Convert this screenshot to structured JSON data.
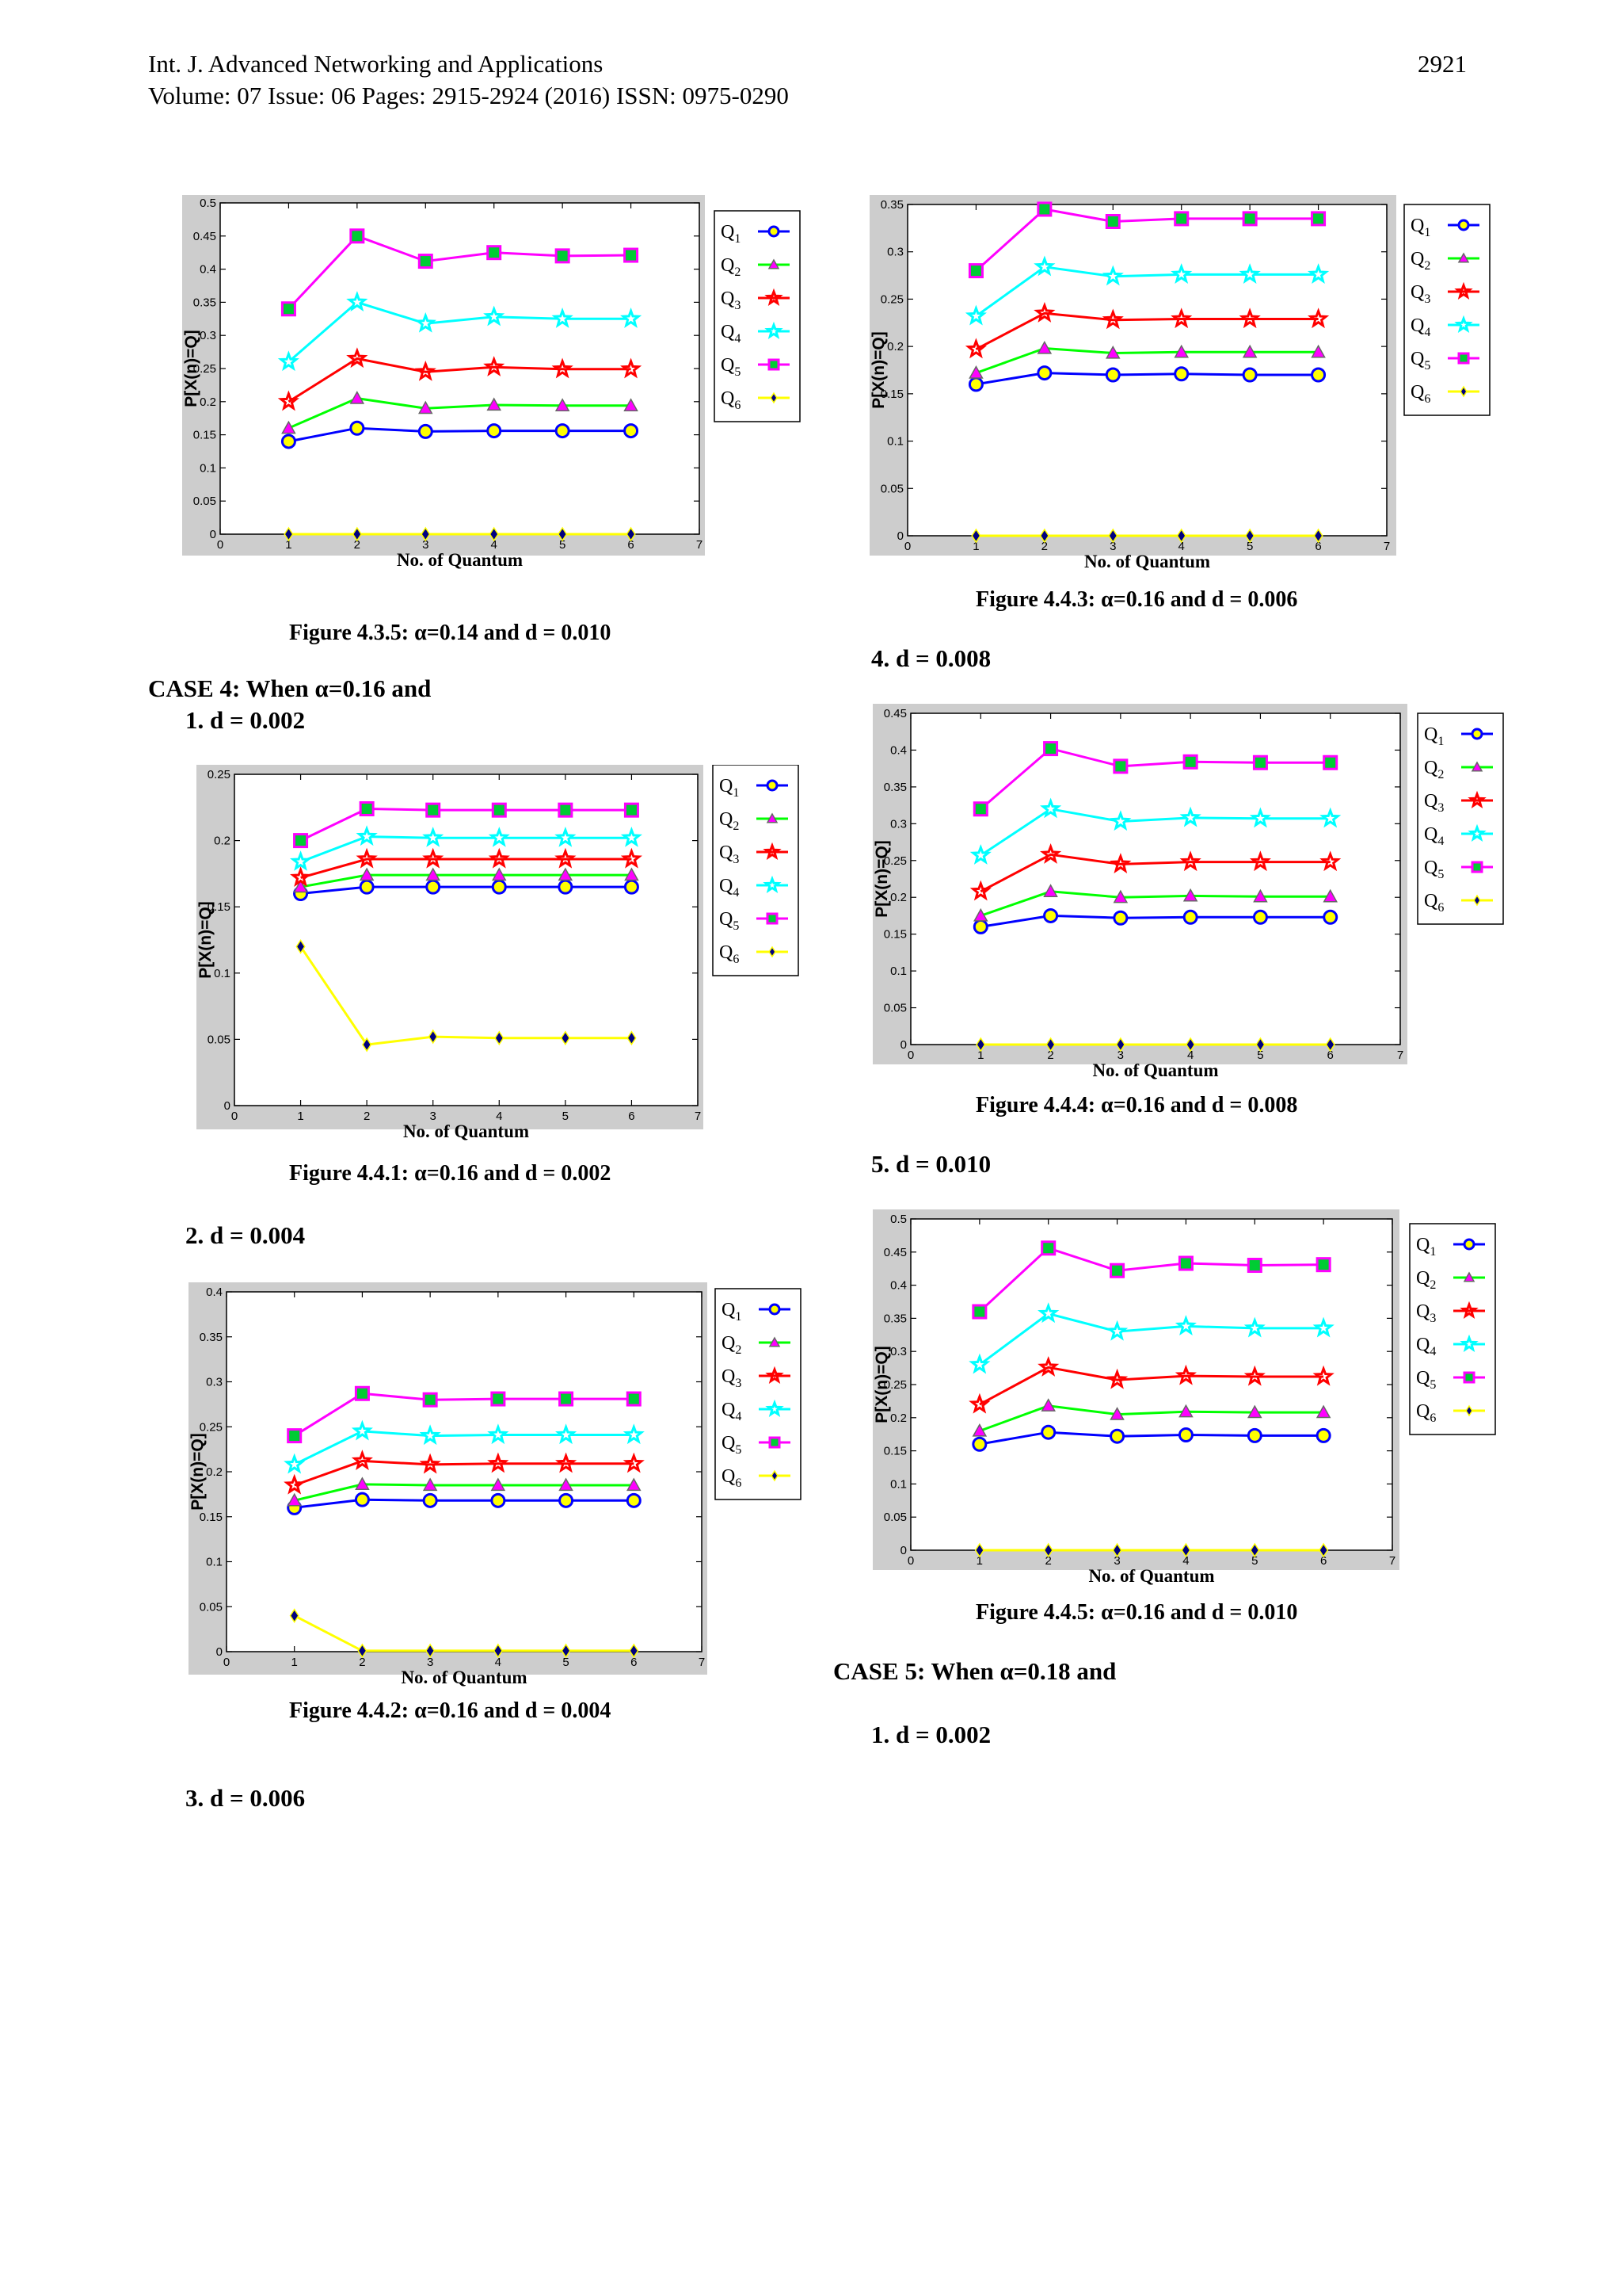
{
  "header": {
    "journal": "Int. J. Advanced Networking and Applications",
    "volume": "Volume: 07 Issue: 06 Pages: 2915-2924 (2016) ISSN: 0975-0290",
    "page_number": "2921"
  },
  "text": {
    "case4": "CASE 4: When α=0.16 and",
    "case4_item1": "1.    d = 0.002",
    "case4_item2": "2.    d = 0.004",
    "case4_item3": "3.    d = 0.006",
    "case4_item4": "4.    d = 0.008",
    "case4_item5": "5.    d = 0.010",
    "case5": "CASE 5: When α=0.18 and",
    "case5_item1": "1.    d = 0.002"
  },
  "captions": {
    "fig435": "Figure 4.3.5:  α=0.14 and d = 0.010",
    "fig443": "Figure 4.4.3:  α=0.16 and d = 0.006",
    "fig441": "Figure 4.4.1:  α=0.16 and d = 0.002",
    "fig444": "Figure 4.4.4:  α=0.16 and d = 0.008",
    "fig442": "Figure 4.4.2:  α=0.16 and d = 0.004",
    "fig445": "Figure 4.4.5:  α=0.16 and d = 0.010"
  },
  "series_colors": {
    "Q1": "#0000ff",
    "Q2": "#00ff00",
    "Q3": "#ff0000",
    "Q4": "#00ffff",
    "Q5": "#ff00ff",
    "Q6": "#ffff00"
  },
  "chart_data": [
    {
      "id": "fig435",
      "type": "line",
      "xlabel": "No. of Quantum",
      "ylabel": "P[X(n)=Q]",
      "xlim": [
        0,
        7
      ],
      "ylim": [
        0,
        0.5
      ],
      "yticks": [
        0,
        0.05,
        0.1,
        0.15,
        0.2,
        0.25,
        0.3,
        0.35,
        0.4,
        0.45,
        0.5
      ],
      "xticks": [
        0,
        1,
        2,
        3,
        4,
        5,
        6,
        7
      ],
      "x": [
        1,
        2,
        3,
        4,
        5,
        6
      ],
      "legend_position": "outside-right",
      "series": [
        {
          "name": "Q1",
          "values": [
            0.14,
            0.16,
            0.155,
            0.156,
            0.156,
            0.156
          ]
        },
        {
          "name": "Q2",
          "values": [
            0.16,
            0.205,
            0.19,
            0.195,
            0.194,
            0.194
          ]
        },
        {
          "name": "Q3",
          "values": [
            0.2,
            0.265,
            0.245,
            0.252,
            0.249,
            0.249
          ]
        },
        {
          "name": "Q4",
          "values": [
            0.26,
            0.35,
            0.318,
            0.328,
            0.325,
            0.325
          ]
        },
        {
          "name": "Q5",
          "values": [
            0.34,
            0.45,
            0.412,
            0.425,
            0.42,
            0.421
          ]
        },
        {
          "name": "Q6",
          "values": [
            0,
            0,
            0,
            0,
            0,
            0
          ]
        }
      ]
    },
    {
      "id": "fig443",
      "type": "line",
      "xlabel": "No. of Quantum",
      "ylabel": "P[X(n)=Q]",
      "xlim": [
        0,
        7
      ],
      "ylim": [
        0,
        0.35
      ],
      "yticks": [
        0,
        0.05,
        0.1,
        0.15,
        0.2,
        0.25,
        0.3,
        0.35
      ],
      "xticks": [
        0,
        1,
        2,
        3,
        4,
        5,
        6,
        7
      ],
      "x": [
        1,
        2,
        3,
        4,
        5,
        6
      ],
      "legend_position": "outside-right",
      "series": [
        {
          "name": "Q1",
          "values": [
            0.16,
            0.172,
            0.17,
            0.171,
            0.17,
            0.17
          ]
        },
        {
          "name": "Q2",
          "values": [
            0.172,
            0.198,
            0.193,
            0.194,
            0.194,
            0.194
          ]
        },
        {
          "name": "Q3",
          "values": [
            0.197,
            0.235,
            0.228,
            0.229,
            0.229,
            0.229
          ]
        },
        {
          "name": "Q4",
          "values": [
            0.232,
            0.284,
            0.274,
            0.276,
            0.276,
            0.276
          ]
        },
        {
          "name": "Q5",
          "values": [
            0.28,
            0.345,
            0.332,
            0.335,
            0.335,
            0.335
          ]
        },
        {
          "name": "Q6",
          "values": [
            0,
            0,
            0,
            0,
            0,
            0
          ]
        }
      ]
    },
    {
      "id": "fig441",
      "type": "line",
      "xlabel": "No. of Quantum",
      "ylabel": "P[X(n)=Q]",
      "xlim": [
        0,
        7
      ],
      "ylim": [
        0,
        0.25
      ],
      "yticks": [
        0,
        0.05,
        0.1,
        0.15,
        0.2,
        0.25
      ],
      "xticks": [
        0,
        1,
        2,
        3,
        4,
        5,
        6,
        7
      ],
      "x": [
        1,
        2,
        3,
        4,
        5,
        6
      ],
      "legend_position": "outside-right",
      "series": [
        {
          "name": "Q1",
          "values": [
            0.16,
            0.165,
            0.165,
            0.165,
            0.165,
            0.165
          ]
        },
        {
          "name": "Q2",
          "values": [
            0.165,
            0.174,
            0.174,
            0.174,
            0.174,
            0.174
          ]
        },
        {
          "name": "Q3",
          "values": [
            0.172,
            0.186,
            0.186,
            0.186,
            0.186,
            0.186
          ]
        },
        {
          "name": "Q4",
          "values": [
            0.184,
            0.203,
            0.202,
            0.202,
            0.202,
            0.202
          ]
        },
        {
          "name": "Q5",
          "values": [
            0.2,
            0.224,
            0.223,
            0.223,
            0.223,
            0.223
          ]
        },
        {
          "name": "Q6",
          "values": [
            0.12,
            0.046,
            0.052,
            0.051,
            0.051,
            0.051
          ]
        }
      ]
    },
    {
      "id": "fig444",
      "type": "line",
      "xlabel": "No. of Quantum",
      "ylabel": "P[X(n)=Q]",
      "xlim": [
        0,
        7
      ],
      "ylim": [
        0,
        0.45
      ],
      "yticks": [
        0,
        0.05,
        0.1,
        0.15,
        0.2,
        0.25,
        0.3,
        0.35,
        0.4,
        0.45
      ],
      "xticks": [
        0,
        1,
        2,
        3,
        4,
        5,
        6,
        7
      ],
      "x": [
        1,
        2,
        3,
        4,
        5,
        6
      ],
      "legend_position": "outside-right",
      "series": [
        {
          "name": "Q1",
          "values": [
            0.16,
            0.175,
            0.172,
            0.173,
            0.173,
            0.173
          ]
        },
        {
          "name": "Q2",
          "values": [
            0.175,
            0.208,
            0.2,
            0.202,
            0.201,
            0.201
          ]
        },
        {
          "name": "Q3",
          "values": [
            0.208,
            0.258,
            0.245,
            0.248,
            0.248,
            0.248
          ]
        },
        {
          "name": "Q4",
          "values": [
            0.257,
            0.32,
            0.303,
            0.308,
            0.307,
            0.307
          ]
        },
        {
          "name": "Q5",
          "values": [
            0.32,
            0.402,
            0.378,
            0.384,
            0.383,
            0.383
          ]
        },
        {
          "name": "Q6",
          "values": [
            0,
            0,
            0,
            0,
            0,
            0
          ]
        }
      ]
    },
    {
      "id": "fig442",
      "type": "line",
      "xlabel": "No. of Quantum",
      "ylabel": "P[X(n)=Q]",
      "xlim": [
        0,
        7
      ],
      "ylim": [
        0,
        0.4
      ],
      "yticks": [
        0,
        0.05,
        0.1,
        0.15,
        0.2,
        0.25,
        0.3,
        0.35,
        0.4
      ],
      "xticks": [
        0,
        1,
        2,
        3,
        4,
        5,
        6,
        7
      ],
      "x": [
        1,
        2,
        3,
        4,
        5,
        6
      ],
      "legend_position": "outside-right",
      "series": [
        {
          "name": "Q1",
          "values": [
            0.16,
            0.169,
            0.168,
            0.168,
            0.168,
            0.168
          ]
        },
        {
          "name": "Q2",
          "values": [
            0.168,
            0.186,
            0.185,
            0.185,
            0.185,
            0.185
          ]
        },
        {
          "name": "Q3",
          "values": [
            0.185,
            0.212,
            0.208,
            0.209,
            0.209,
            0.209
          ]
        },
        {
          "name": "Q4",
          "values": [
            0.208,
            0.245,
            0.24,
            0.241,
            0.241,
            0.241
          ]
        },
        {
          "name": "Q5",
          "values": [
            0.24,
            0.287,
            0.28,
            0.281,
            0.281,
            0.281
          ]
        },
        {
          "name": "Q6",
          "values": [
            0.04,
            0.001,
            0.001,
            0.001,
            0.001,
            0.001
          ]
        }
      ]
    },
    {
      "id": "fig445",
      "type": "line",
      "xlabel": "No. of Quantum",
      "ylabel": "P[X(n)=Q]",
      "xlim": [
        0,
        7
      ],
      "ylim": [
        0,
        0.5
      ],
      "yticks": [
        0,
        0.05,
        0.1,
        0.15,
        0.2,
        0.25,
        0.3,
        0.35,
        0.4,
        0.45,
        0.5
      ],
      "xticks": [
        0,
        1,
        2,
        3,
        4,
        5,
        6,
        7
      ],
      "x": [
        1,
        2,
        3,
        4,
        5,
        6
      ],
      "legend_position": "outside-right",
      "series": [
        {
          "name": "Q1",
          "values": [
            0.16,
            0.178,
            0.172,
            0.174,
            0.173,
            0.173
          ]
        },
        {
          "name": "Q2",
          "values": [
            0.18,
            0.218,
            0.205,
            0.209,
            0.208,
            0.208
          ]
        },
        {
          "name": "Q3",
          "values": [
            0.22,
            0.276,
            0.257,
            0.263,
            0.262,
            0.262
          ]
        },
        {
          "name": "Q4",
          "values": [
            0.28,
            0.357,
            0.33,
            0.338,
            0.335,
            0.335
          ]
        },
        {
          "name": "Q5",
          "values": [
            0.36,
            0.456,
            0.422,
            0.433,
            0.43,
            0.431
          ]
        },
        {
          "name": "Q6",
          "values": [
            0,
            0,
            0,
            0,
            0,
            0
          ]
        }
      ]
    }
  ]
}
